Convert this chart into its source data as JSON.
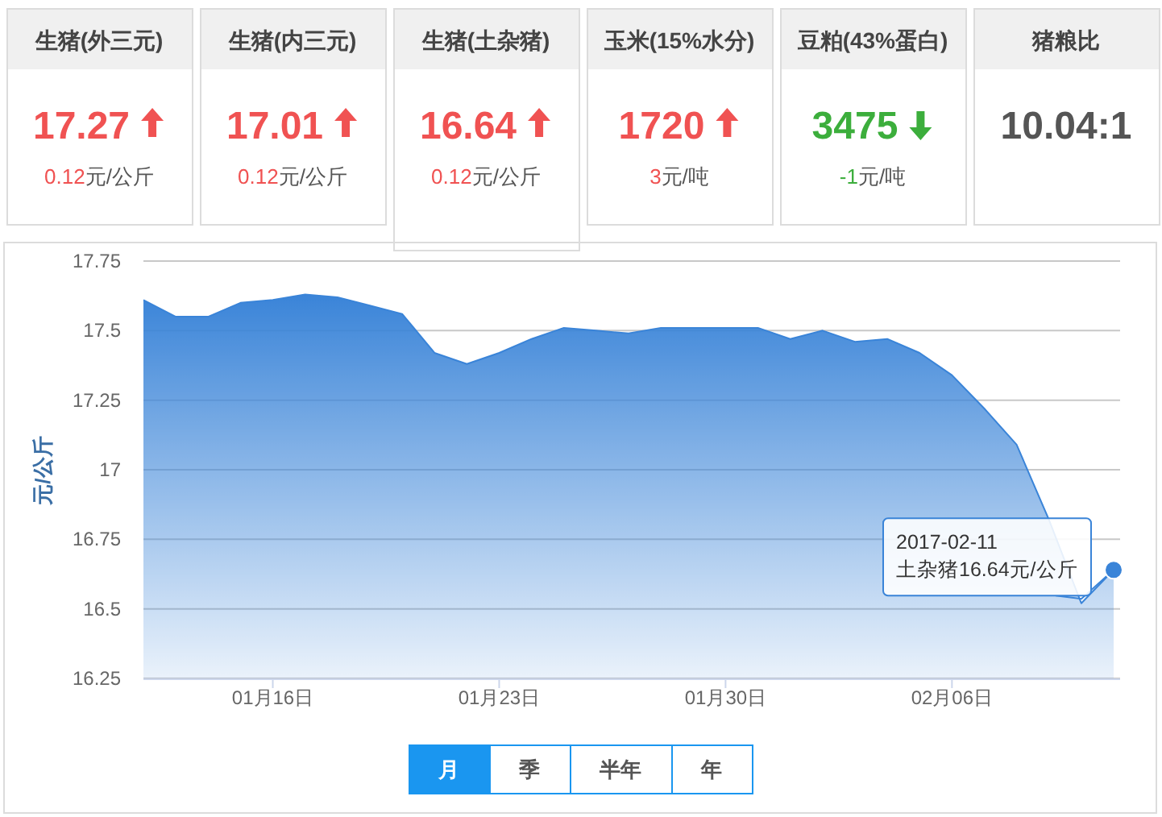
{
  "chart_data": [
    {
      "type": "other",
      "annotations": [
        "生猪(外三元)",
        "17.27",
        "0.12元/公斤",
        "生猪(内三元)",
        "17.01",
        "0.12元/公斤",
        "生猪(土杂猪)",
        "16.64",
        "0.12元/公斤",
        "玉米(15%水分)",
        "1720",
        "3元/吨",
        "豆粕(43%蛋白)",
        "3475",
        "-1元/吨",
        "猪粮比",
        "10.04:1"
      ]
    },
    {
      "type": "area",
      "ylabel": "元/公斤",
      "x": [
        "2017-01-12",
        "2017-01-13",
        "2017-01-14",
        "2017-01-15",
        "2017-01-16",
        "2017-01-17",
        "2017-01-18",
        "2017-01-19",
        "2017-01-20",
        "2017-01-21",
        "2017-01-22",
        "2017-01-23",
        "2017-01-24",
        "2017-01-25",
        "2017-01-26",
        "2017-01-27",
        "2017-01-28",
        "2017-01-29",
        "2017-01-30",
        "2017-01-31",
        "2017-02-01",
        "2017-02-02",
        "2017-02-03",
        "2017-02-04",
        "2017-02-05",
        "2017-02-06",
        "2017-02-07",
        "2017-02-08",
        "2017-02-09",
        "2017-02-10",
        "2017-02-11"
      ],
      "series": [
        {
          "color": "#3a84d8",
          "values": [
            17.61,
            17.55,
            17.55,
            17.6,
            17.61,
            17.63,
            17.62,
            17.59,
            17.56,
            17.42,
            17.38,
            17.42,
            17.47,
            17.51,
            17.5,
            17.49,
            17.51,
            17.51,
            17.51,
            17.51,
            17.47,
            17.5,
            17.46,
            17.47,
            17.42,
            17.34,
            17.22,
            17.09,
            16.82,
            16.52,
            16.64
          ]
        }
      ],
      "xlim": [
        "2017-01-12",
        "2017-02-11"
      ],
      "xticks": [
        {
          "value": "2017-01-16",
          "label": "01月16日"
        },
        {
          "value": "2017-01-23",
          "label": "01月23日"
        },
        {
          "value": "2017-01-30",
          "label": "01月30日"
        },
        {
          "value": "2017-02-06",
          "label": "02月06日"
        }
      ],
      "ylim": [
        16.25,
        17.75
      ],
      "yticks": [
        16.25,
        16.5,
        16.75,
        17,
        17.25,
        17.5,
        17.75
      ],
      "grid": "y",
      "annotations": [
        {
          "text": "2017-02-11\n土杂猪16.64元/公斤",
          "x": "2017-02-11",
          "y": 16.64
        },
        "月",
        "季",
        "半年",
        "年"
      ]
    }
  ]
}
